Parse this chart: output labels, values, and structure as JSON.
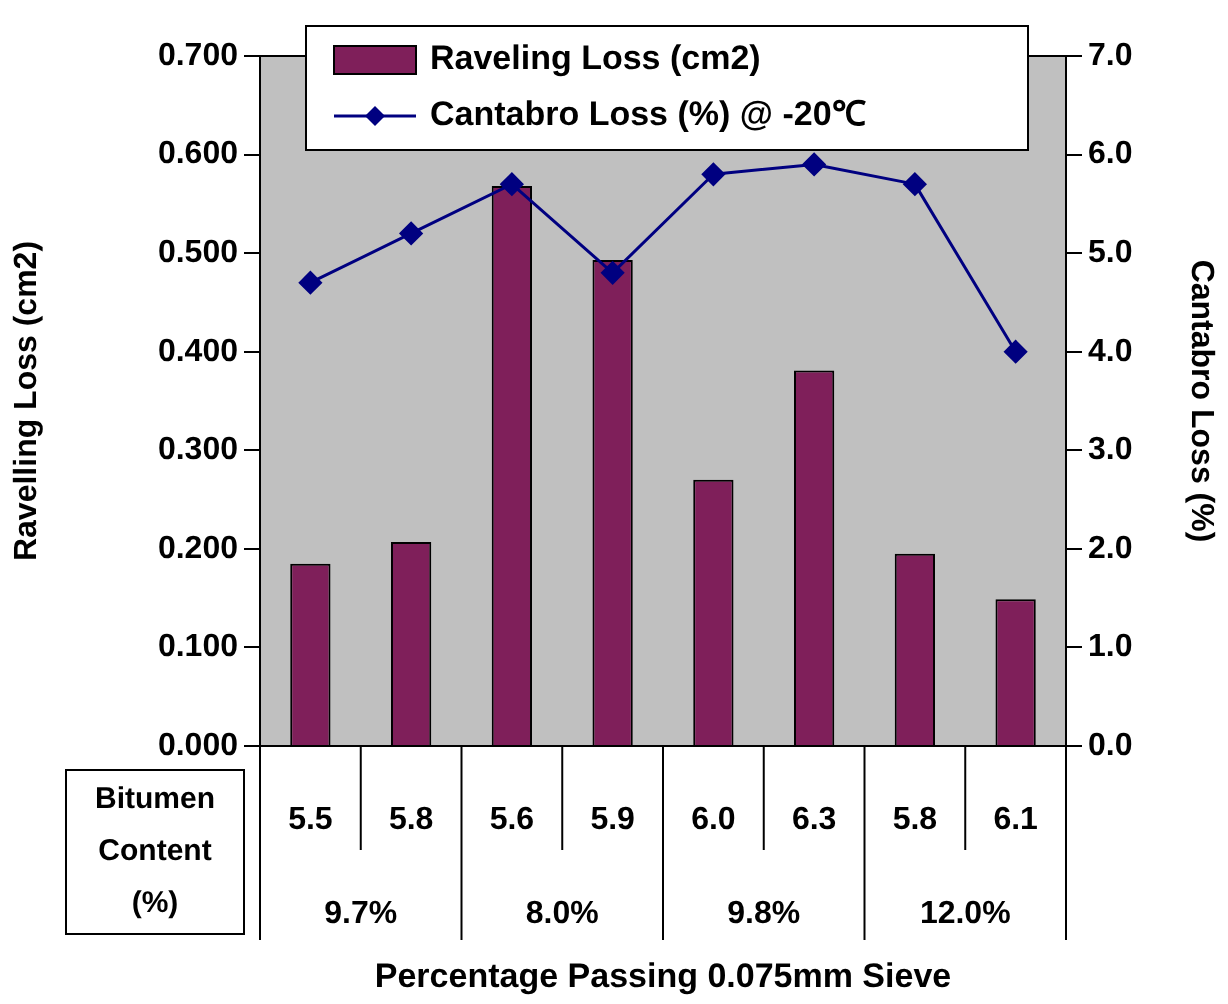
{
  "chart_data": {
    "type": "bar",
    "xlabel": "Percentage Passing 0.075mm Sieve",
    "ylabel": "Ravelling Loss (cm2)",
    "y2label": "Cantabro Loss (%)",
    "categories": [
      "5.5",
      "5.8",
      "5.6",
      "5.9",
      "6.0",
      "6.3",
      "5.8",
      "6.1"
    ],
    "series": [
      {
        "name": "Raveling Loss (cm2)",
        "color": "#7f1f5a",
        "values": [
          0.185,
          0.207,
          0.568,
          0.493,
          0.27,
          0.381,
          0.195,
          0.149
        ]
      },
      {
        "name": "Cantabro Loss (%) @ -20℃",
        "type": "line",
        "axis": "y2",
        "color": "#000080",
        "marker": "diamond",
        "line_style": "solid",
        "values": [
          4.7,
          5.2,
          5.7,
          4.8,
          5.8,
          5.9,
          5.7,
          4.0
        ]
      }
    ],
    "ylim": [
      0,
      0.7
    ],
    "yticks": [
      {
        "value": 0,
        "label": "0.000"
      },
      {
        "value": 0.1,
        "label": "0.100"
      },
      {
        "value": 0.2,
        "label": "0.200"
      },
      {
        "value": 0.3,
        "label": "0.300"
      },
      {
        "value": 0.4,
        "label": "0.400"
      },
      {
        "value": 0.5,
        "label": "0.500"
      },
      {
        "value": 0.6,
        "label": "0.600"
      },
      {
        "value": 0.7,
        "label": "0.700"
      }
    ],
    "y2lim": [
      0,
      7
    ],
    "y2ticks": [
      {
        "value": 0,
        "label": "0.0"
      },
      {
        "value": 1,
        "label": "1.0"
      },
      {
        "value": 2,
        "label": "2.0"
      },
      {
        "value": 3,
        "label": "3.0"
      },
      {
        "value": 4,
        "label": "4.0"
      },
      {
        "value": 5,
        "label": "5.0"
      },
      {
        "value": 6,
        "label": "6.0"
      },
      {
        "value": 7,
        "label": "7.0"
      }
    ],
    "annotations": [
      "Bitumen Content (%)",
      "9.7%",
      "8.0%",
      "9.8%",
      "12.0%"
    ],
    "grid": false,
    "legend": "top"
  }
}
